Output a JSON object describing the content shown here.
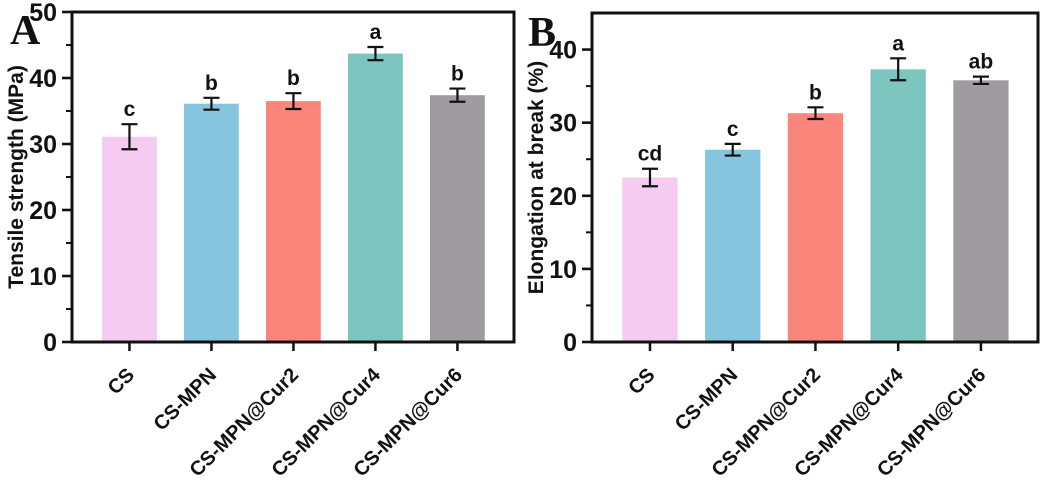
{
  "figure": {
    "background_color": "#ffffff",
    "axis_color": "#111111"
  },
  "chart_data": [
    {
      "type": "bar",
      "panel_label": "A",
      "title": "",
      "xlabel": "",
      "ylabel": "Tensile strength (MPa)",
      "categories": [
        "CS",
        "CS-MPN",
        "CS-MPN@Cur2",
        "CS-MPN@Cur4",
        "CS-MPN@Cur6"
      ],
      "values": [
        31.1,
        36.1,
        36.5,
        43.7,
        37.4
      ],
      "errors": [
        1.9,
        0.9,
        1.2,
        1.0,
        1.0
      ],
      "sig_letters": [
        "c",
        "b",
        "b",
        "a",
        "b"
      ],
      "ylim": [
        0,
        50
      ],
      "ytick_major": 10,
      "ytick_minor": 5,
      "ytick_labels": [
        "0",
        "10",
        "20",
        "30",
        "40",
        "50"
      ],
      "grid": false,
      "legend": "none",
      "bar_colors": [
        "#f6cbf1",
        "#86c5de",
        "#fa867b",
        "#7cc6bf",
        "#9e9ca1"
      ]
    },
    {
      "type": "bar",
      "panel_label": "B",
      "title": "",
      "xlabel": "",
      "ylabel": "Elongation at break (%)",
      "categories": [
        "CS",
        "CS-MPN",
        "CS-MPN@Cur2",
        "CS-MPN@Cur4",
        "CS-MPN@Cur6"
      ],
      "values": [
        22.5,
        26.3,
        31.3,
        37.3,
        35.8
      ],
      "errors": [
        1.2,
        0.8,
        0.8,
        1.5,
        0.5
      ],
      "sig_letters": [
        "cd",
        "c",
        "b",
        "a",
        "ab"
      ],
      "ylim": [
        0,
        45
      ],
      "ytick_major": 10,
      "ytick_minor": 5,
      "ytick_labels": [
        "0",
        "10",
        "20",
        "30",
        "40"
      ],
      "grid": false,
      "legend": "none",
      "bar_colors": [
        "#f6cbf1",
        "#86c5de",
        "#fa867b",
        "#7cc6bf",
        "#9e9ca1"
      ]
    }
  ]
}
